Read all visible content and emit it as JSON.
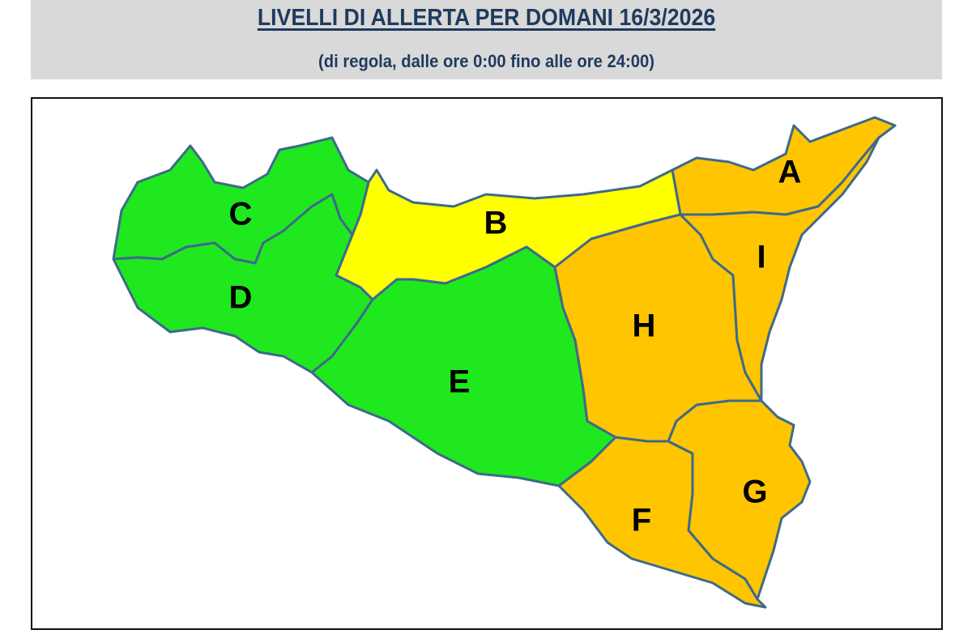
{
  "header": {
    "title": "LIVELLI DI ALLERTA PER DOMANI 16/3/2026",
    "subtitle": "(di regola, dalle ore 0:00 fino alle ore 24:00)"
  },
  "colors": {
    "green": "#1fe81f",
    "yellow": "#ffff00",
    "orange": "#ffc500",
    "border": "#3d6a8a"
  },
  "zones": [
    {
      "id": "A",
      "level": "orange"
    },
    {
      "id": "B",
      "level": "yellow"
    },
    {
      "id": "C",
      "level": "green"
    },
    {
      "id": "D",
      "level": "green"
    },
    {
      "id": "E",
      "level": "green"
    },
    {
      "id": "F",
      "level": "orange"
    },
    {
      "id": "G",
      "level": "orange"
    },
    {
      "id": "H",
      "level": "orange"
    },
    {
      "id": "I",
      "level": "orange"
    }
  ]
}
